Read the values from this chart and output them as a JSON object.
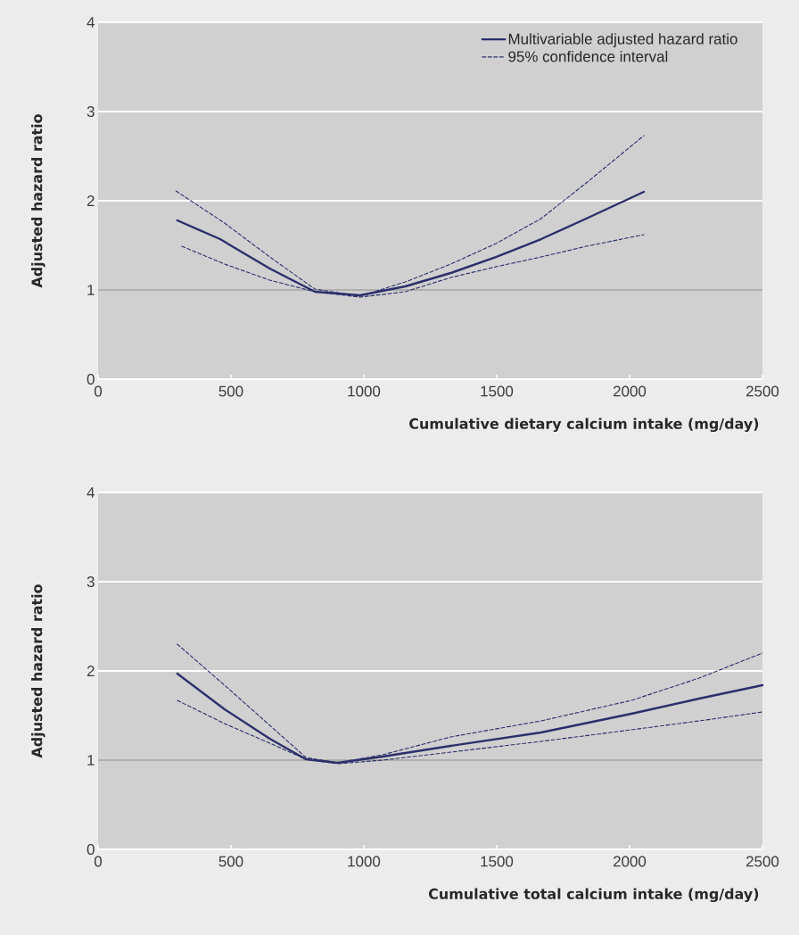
{
  "chart_data": [
    {
      "type": "line",
      "xlabel": "Cumulative dietary calcium intake (mg/day)",
      "ylabel": "Adjusted hazard ratio",
      "xlim": [
        0,
        2500
      ],
      "ylim": [
        0,
        4
      ],
      "xticks": [
        0,
        500,
        1000,
        1500,
        2000,
        2500
      ],
      "yticks": [
        0,
        1,
        2,
        3,
        4
      ],
      "grid": "y",
      "legend": "top right",
      "ref_lines": [
        {
          "axis": "y",
          "value": 1,
          "color": "#606060"
        }
      ],
      "series": [
        {
          "name": "Multivariable adjusted hazard ratio",
          "color": "#2b2f6b",
          "line_style": "solid",
          "x": [
            298,
            459,
            646,
            816,
            986,
            1156,
            1327,
            1497,
            1667,
            1837,
            2054
          ],
          "values": [
            1.78,
            1.57,
            1.24,
            0.98,
            0.94,
            1.04,
            1.19,
            1.37,
            1.57,
            1.8,
            2.1
          ]
        },
        {
          "name": "95% confidence interval",
          "color": "#2b2f6b",
          "line_style": "dashed",
          "x": [
            293,
            476,
            646,
            816,
            986,
            1156,
            1327,
            1497,
            1667,
            1837,
            2054
          ],
          "values": [
            2.11,
            1.75,
            1.37,
            1.01,
            0.93,
            1.09,
            1.29,
            1.52,
            1.8,
            2.2,
            2.73
          ]
        },
        {
          "color": "#2b2f6b",
          "line_style": "dashed",
          "x": [
            315,
            476,
            646,
            816,
            986,
            1156,
            1327,
            1497,
            1667,
            1837,
            2054
          ],
          "values": [
            1.49,
            1.29,
            1.11,
            0.98,
            0.92,
            0.98,
            1.14,
            1.26,
            1.37,
            1.49,
            1.62
          ]
        }
      ]
    },
    {
      "type": "line",
      "xlabel": "Cumulative total calcium intake (mg/day)",
      "ylabel": "Adjusted hazard ratio",
      "xlim": [
        0,
        2500
      ],
      "ylim": [
        0,
        4
      ],
      "xticks": [
        0,
        500,
        1000,
        1500,
        2000,
        2500
      ],
      "yticks": [
        0,
        1,
        2,
        3,
        4
      ],
      "grid": "y",
      "ref_lines": [
        {
          "axis": "y",
          "value": 1,
          "color": "#606060"
        }
      ],
      "series": [
        {
          "color": "#2b2f6b",
          "line_style": "solid",
          "x": [
            298,
            476,
            646,
            782,
            901,
            1071,
            1327,
            1667,
            2007,
            2262,
            2500
          ],
          "values": [
            1.97,
            1.57,
            1.24,
            1.01,
            0.97,
            1.04,
            1.16,
            1.31,
            1.52,
            1.69,
            1.84
          ]
        },
        {
          "color": "#2b2f6b",
          "line_style": "dashed",
          "x": [
            298,
            476,
            646,
            782,
            901,
            1071,
            1327,
            1667,
            2007,
            2262,
            2500
          ],
          "values": [
            2.3,
            1.84,
            1.39,
            1.03,
            0.97,
            1.06,
            1.26,
            1.44,
            1.67,
            1.92,
            2.2
          ]
        },
        {
          "color": "#2b2f6b",
          "line_style": "dashed",
          "x": [
            298,
            476,
            646,
            782,
            901,
            1071,
            1327,
            1667,
            2007,
            2262,
            2500
          ],
          "values": [
            1.67,
            1.41,
            1.19,
            1.01,
            0.96,
            1.0,
            1.09,
            1.21,
            1.34,
            1.44,
            1.54
          ]
        }
      ]
    }
  ]
}
